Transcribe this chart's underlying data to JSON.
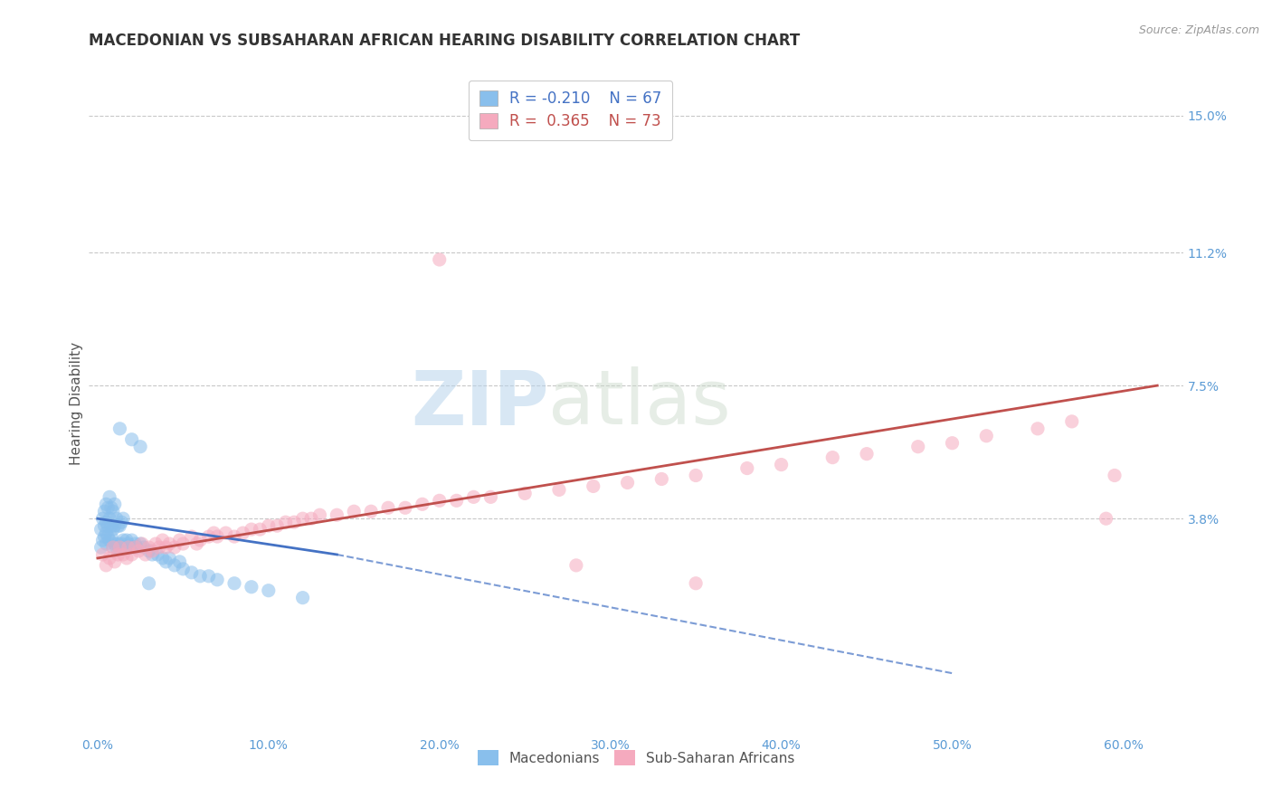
{
  "title": "MACEDONIAN VS SUBSAHARAN AFRICAN HEARING DISABILITY CORRELATION CHART",
  "source": "Source: ZipAtlas.com",
  "xlabel_ticks": [
    "0.0%",
    "10.0%",
    "20.0%",
    "30.0%",
    "40.0%",
    "50.0%",
    "60.0%"
  ],
  "xlabel_vals": [
    0.0,
    0.1,
    0.2,
    0.3,
    0.4,
    0.5,
    0.6
  ],
  "ylabel_ticks": [
    "15.0%",
    "11.2%",
    "7.5%",
    "3.8%"
  ],
  "ylabel_vals": [
    0.15,
    0.112,
    0.075,
    0.038
  ],
  "xlim": [
    -0.005,
    0.635
  ],
  "ylim": [
    -0.022,
    0.162
  ],
  "legend_label1": "Macedonians",
  "legend_label2": "Sub-Saharan Africans",
  "R1": -0.21,
  "N1": 67,
  "R2": 0.365,
  "N2": 73,
  "color_blue": "#89BFEC",
  "color_pink": "#F5AABE",
  "color_blue_text": "#4472C4",
  "color_pink_text": "#C0504D",
  "line_blue": "#4472C4",
  "line_pink": "#C0504D",
  "watermark_zip": "ZIP",
  "watermark_atlas": "atlas",
  "background": "#FFFFFF",
  "grid_color": "#C8C8C8",
  "title_fontsize": 12,
  "scatter_alpha": 0.55,
  "scatter_size": 120,
  "blue_x": [
    0.002,
    0.002,
    0.003,
    0.003,
    0.004,
    0.004,
    0.004,
    0.005,
    0.005,
    0.005,
    0.005,
    0.006,
    0.006,
    0.006,
    0.007,
    0.007,
    0.007,
    0.008,
    0.008,
    0.008,
    0.009,
    0.009,
    0.009,
    0.01,
    0.01,
    0.01,
    0.011,
    0.011,
    0.012,
    0.012,
    0.013,
    0.013,
    0.014,
    0.014,
    0.015,
    0.015,
    0.016,
    0.017,
    0.018,
    0.019,
    0.02,
    0.021,
    0.022,
    0.023,
    0.025,
    0.027,
    0.03,
    0.032,
    0.035,
    0.038,
    0.04,
    0.042,
    0.045,
    0.048,
    0.05,
    0.055,
    0.06,
    0.065,
    0.07,
    0.08,
    0.09,
    0.1,
    0.12,
    0.013,
    0.02,
    0.025,
    0.03
  ],
  "blue_y": [
    0.03,
    0.035,
    0.032,
    0.038,
    0.033,
    0.036,
    0.04,
    0.031,
    0.034,
    0.037,
    0.042,
    0.033,
    0.036,
    0.041,
    0.032,
    0.038,
    0.044,
    0.033,
    0.036,
    0.041,
    0.03,
    0.035,
    0.04,
    0.031,
    0.036,
    0.042,
    0.03,
    0.038,
    0.031,
    0.036,
    0.03,
    0.036,
    0.031,
    0.037,
    0.032,
    0.038,
    0.03,
    0.032,
    0.031,
    0.03,
    0.032,
    0.03,
    0.031,
    0.03,
    0.031,
    0.03,
    0.029,
    0.028,
    0.028,
    0.027,
    0.026,
    0.027,
    0.025,
    0.026,
    0.024,
    0.023,
    0.022,
    0.022,
    0.021,
    0.02,
    0.019,
    0.018,
    0.016,
    0.063,
    0.06,
    0.058,
    0.02
  ],
  "pink_x": [
    0.003,
    0.005,
    0.007,
    0.009,
    0.01,
    0.012,
    0.013,
    0.015,
    0.017,
    0.018,
    0.02,
    0.022,
    0.024,
    0.026,
    0.028,
    0.03,
    0.032,
    0.034,
    0.036,
    0.038,
    0.04,
    0.042,
    0.045,
    0.048,
    0.05,
    0.055,
    0.058,
    0.06,
    0.065,
    0.068,
    0.07,
    0.075,
    0.08,
    0.085,
    0.09,
    0.095,
    0.1,
    0.105,
    0.11,
    0.115,
    0.12,
    0.125,
    0.13,
    0.14,
    0.15,
    0.16,
    0.17,
    0.18,
    0.19,
    0.2,
    0.21,
    0.22,
    0.23,
    0.25,
    0.27,
    0.29,
    0.31,
    0.33,
    0.35,
    0.38,
    0.4,
    0.43,
    0.45,
    0.48,
    0.5,
    0.52,
    0.55,
    0.57,
    0.59,
    0.595,
    0.2,
    0.28,
    0.35
  ],
  "pink_y": [
    0.028,
    0.025,
    0.027,
    0.03,
    0.026,
    0.028,
    0.03,
    0.028,
    0.027,
    0.03,
    0.028,
    0.03,
    0.029,
    0.031,
    0.028,
    0.03,
    0.029,
    0.031,
    0.03,
    0.032,
    0.03,
    0.031,
    0.03,
    0.032,
    0.031,
    0.033,
    0.031,
    0.032,
    0.033,
    0.034,
    0.033,
    0.034,
    0.033,
    0.034,
    0.035,
    0.035,
    0.036,
    0.036,
    0.037,
    0.037,
    0.038,
    0.038,
    0.039,
    0.039,
    0.04,
    0.04,
    0.041,
    0.041,
    0.042,
    0.043,
    0.043,
    0.044,
    0.044,
    0.045,
    0.046,
    0.047,
    0.048,
    0.049,
    0.05,
    0.052,
    0.053,
    0.055,
    0.056,
    0.058,
    0.059,
    0.061,
    0.063,
    0.065,
    0.038,
    0.05,
    0.11,
    0.025,
    0.02
  ]
}
